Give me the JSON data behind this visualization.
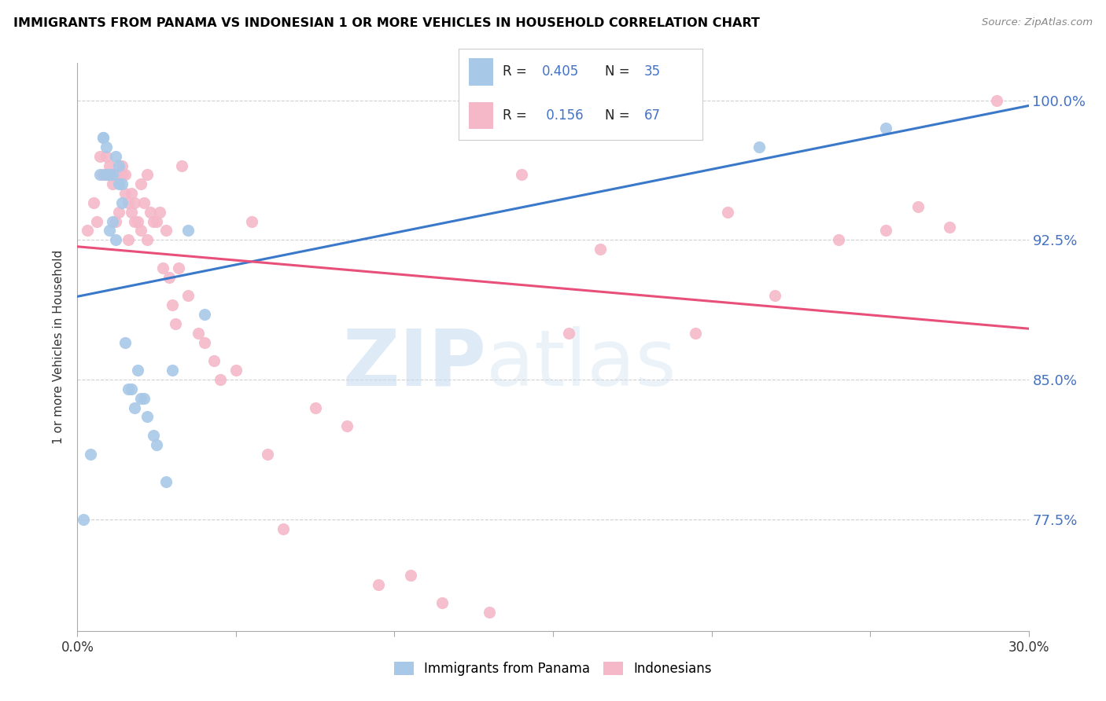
{
  "title": "IMMIGRANTS FROM PANAMA VS INDONESIAN 1 OR MORE VEHICLES IN HOUSEHOLD CORRELATION CHART",
  "source": "Source: ZipAtlas.com",
  "ylabel": "1 or more Vehicles in Household",
  "ylabel_ticks": [
    "100.0%",
    "92.5%",
    "85.0%",
    "77.5%"
  ],
  "ylabel_values": [
    1.0,
    0.925,
    0.85,
    0.775
  ],
  "xlim": [
    0.0,
    0.3
  ],
  "ylim": [
    0.715,
    1.02
  ],
  "panama_color": "#a8c8e8",
  "indonesian_color": "#f4b8c8",
  "panama_line_color": "#3a78c9",
  "indonesian_line_color": "#e8507a",
  "watermark_zip": "ZIP",
  "watermark_atlas": "atlas",
  "panama_points_x": [
    0.002,
    0.004,
    0.007,
    0.008,
    0.008,
    0.009,
    0.009,
    0.009,
    0.01,
    0.01,
    0.011,
    0.011,
    0.012,
    0.012,
    0.013,
    0.013,
    0.014,
    0.014,
    0.015,
    0.016,
    0.017,
    0.018,
    0.019,
    0.02,
    0.021,
    0.022,
    0.024,
    0.025,
    0.028,
    0.03,
    0.035,
    0.04,
    0.19,
    0.215,
    0.255
  ],
  "panama_points_y": [
    0.775,
    0.81,
    0.96,
    0.98,
    0.98,
    0.96,
    0.96,
    0.975,
    0.93,
    0.96,
    0.935,
    0.96,
    0.925,
    0.97,
    0.955,
    0.965,
    0.945,
    0.955,
    0.87,
    0.845,
    0.845,
    0.835,
    0.855,
    0.84,
    0.84,
    0.83,
    0.82,
    0.815,
    0.795,
    0.855,
    0.93,
    0.885,
    0.99,
    0.975,
    0.985
  ],
  "indonesian_points_x": [
    0.003,
    0.005,
    0.006,
    0.007,
    0.008,
    0.008,
    0.009,
    0.01,
    0.01,
    0.011,
    0.012,
    0.012,
    0.013,
    0.013,
    0.014,
    0.014,
    0.015,
    0.015,
    0.016,
    0.016,
    0.017,
    0.017,
    0.018,
    0.018,
    0.019,
    0.02,
    0.02,
    0.021,
    0.022,
    0.022,
    0.023,
    0.024,
    0.025,
    0.026,
    0.027,
    0.028,
    0.029,
    0.03,
    0.031,
    0.032,
    0.033,
    0.035,
    0.038,
    0.04,
    0.043,
    0.045,
    0.05,
    0.055,
    0.06,
    0.065,
    0.075,
    0.085,
    0.095,
    0.105,
    0.115,
    0.13,
    0.14,
    0.155,
    0.165,
    0.195,
    0.205,
    0.22,
    0.24,
    0.255,
    0.265,
    0.275,
    0.29
  ],
  "indonesian_points_y": [
    0.93,
    0.945,
    0.935,
    0.97,
    0.96,
    0.96,
    0.97,
    0.965,
    0.96,
    0.955,
    0.96,
    0.935,
    0.94,
    0.96,
    0.96,
    0.965,
    0.95,
    0.96,
    0.925,
    0.945,
    0.94,
    0.95,
    0.935,
    0.945,
    0.935,
    0.93,
    0.955,
    0.945,
    0.925,
    0.96,
    0.94,
    0.935,
    0.935,
    0.94,
    0.91,
    0.93,
    0.905,
    0.89,
    0.88,
    0.91,
    0.965,
    0.895,
    0.875,
    0.87,
    0.86,
    0.85,
    0.855,
    0.935,
    0.81,
    0.77,
    0.835,
    0.825,
    0.74,
    0.745,
    0.73,
    0.725,
    0.96,
    0.875,
    0.92,
    0.875,
    0.94,
    0.895,
    0.925,
    0.93,
    0.943,
    0.932,
    1.0
  ],
  "background_color": "#ffffff",
  "grid_color": "#d0d0d0",
  "xtick_positions": [
    0.0,
    0.05,
    0.1,
    0.15,
    0.2,
    0.25,
    0.3
  ],
  "xtick_labels": [
    "0.0%",
    "",
    "",
    "",
    "",
    "",
    "30.0%"
  ]
}
